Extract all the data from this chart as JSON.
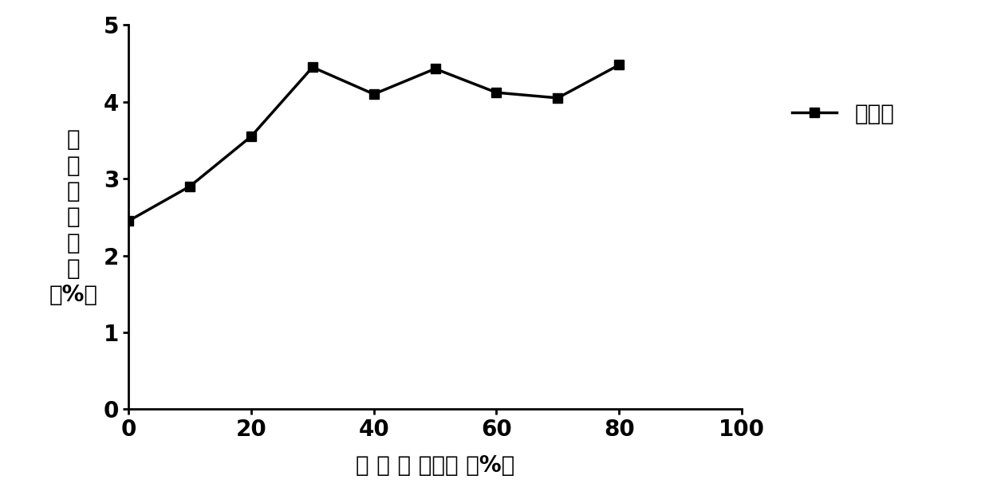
{
  "x": [
    0,
    10,
    20,
    30,
    40,
    50,
    60,
    70,
    80
  ],
  "y": [
    2.45,
    2.9,
    3.55,
    4.45,
    4.1,
    4.43,
    4.12,
    4.05,
    4.48
  ],
  "line_color": "#000000",
  "marker": "s",
  "marker_size": 9,
  "line_width": 2.5,
  "xlabel": "不 同 体 积分数 （%）",
  "ylabel_chars": [
    "总",
    "三",
    "蕌",
    "的",
    "含",
    "量",
    "（%）"
  ],
  "legend_label": "总三蕌",
  "xlim": [
    0,
    100
  ],
  "ylim": [
    0,
    5
  ],
  "xticks": [
    0,
    20,
    40,
    60,
    80,
    100
  ],
  "yticks": [
    0,
    1,
    2,
    3,
    4,
    5
  ],
  "xlabel_fontsize": 20,
  "ylabel_fontsize": 20,
  "tick_fontsize": 20,
  "legend_fontsize": 20,
  "background_color": "#ffffff"
}
